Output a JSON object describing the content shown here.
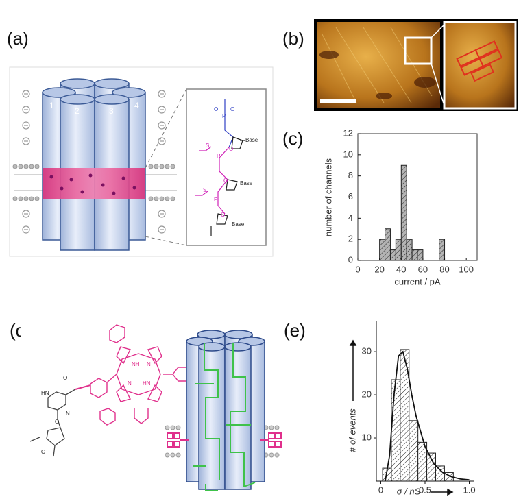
{
  "panel_labels": [
    "(a)",
    "(b)",
    "(c)",
    "(d)",
    "(e)"
  ],
  "diagram_a": {
    "column_labels": [
      "1",
      "2",
      "3",
      "4"
    ],
    "base_labels": [
      "Base",
      "Base",
      "Base"
    ],
    "atoms": [
      "O",
      "P",
      "O",
      "O",
      "S",
      "P",
      "O",
      "S",
      "P",
      "O"
    ]
  },
  "diagram_d": {
    "atoms": [
      "O",
      "HN",
      "O",
      "N",
      "O",
      "NH",
      "N",
      "N",
      "HN"
    ]
  },
  "chart_data": [
    {
      "type": "histogram",
      "xlabel": "current / pA",
      "ylabel": "number of channels",
      "bins": [
        20,
        25,
        30,
        35,
        40,
        45,
        50,
        55,
        60,
        65,
        70,
        75,
        80
      ],
      "values": [
        2,
        3,
        1,
        2,
        9,
        2,
        1,
        1,
        0,
        0,
        0,
        2
      ],
      "color": "#b4b4b4",
      "xlim": [
        0,
        110
      ],
      "ylim": [
        0,
        12
      ],
      "xticks": [
        0,
        20,
        40,
        60,
        80,
        100
      ],
      "yticks": [
        0,
        2,
        4,
        6,
        8,
        10,
        12
      ]
    },
    {
      "type": "histogram",
      "xlabel": "σ / nS",
      "ylabel": "# of events",
      "bins": [
        0.02,
        0.12,
        0.22,
        0.32,
        0.42,
        0.52,
        0.62,
        0.72,
        0.82
      ],
      "values": [
        3,
        23.5,
        30.5,
        14,
        9,
        6.5,
        3.5,
        2
      ],
      "color": "#ffffff",
      "fit": {
        "x": [
          0.05,
          0.1,
          0.15,
          0.2,
          0.25,
          0.3,
          0.35,
          0.4,
          0.5,
          0.6,
          0.7,
          0.8,
          0.9,
          1.0
        ],
        "values": [
          0,
          6,
          20,
          29,
          30,
          26,
          20,
          15,
          8,
          4,
          2,
          1,
          0.5,
          0.3
        ]
      },
      "xlim": [
        -0.05,
        1.05
      ],
      "ylim": [
        0,
        37
      ],
      "xticks": [
        0,
        0.5,
        {
          "value": 1,
          "label": "1.0"
        }
      ],
      "yticks": [
        10,
        20,
        30
      ]
    }
  ]
}
